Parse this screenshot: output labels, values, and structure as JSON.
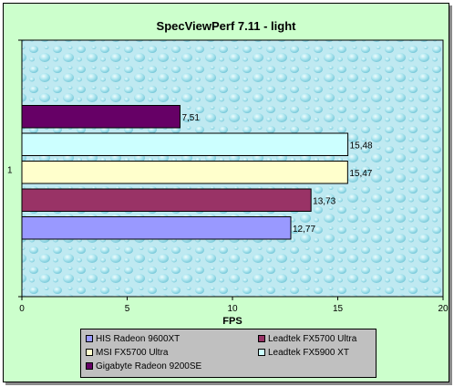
{
  "chart_data": {
    "type": "bar",
    "orientation": "horizontal",
    "title": "SpecViewPerf 7.11 - light",
    "xlabel": "FPS",
    "ylabel": "",
    "categories": [
      "1"
    ],
    "xlim": [
      0,
      20
    ],
    "xticks": [
      "0",
      "5",
      "10",
      "15",
      "20"
    ],
    "grid": false,
    "legend_position": "bottom",
    "series": [
      {
        "name": "HIS Radeon 9600XT",
        "value": 12.77,
        "label": "12,77",
        "color": "#9999ff"
      },
      {
        "name": "Leadtek FX5700 Ultra",
        "value": 13.73,
        "label": "13,73",
        "color": "#993366"
      },
      {
        "name": "MSI FX5700 Ultra",
        "value": 15.47,
        "label": "15,47",
        "color": "#ffffcc"
      },
      {
        "name": "Leadtek FX5900 XT",
        "value": 15.48,
        "label": "15,48",
        "color": "#ccffff"
      },
      {
        "name": "Gigabyte Radeon 9200SE",
        "value": 7.51,
        "label": "7,51",
        "color": "#660066"
      }
    ]
  }
}
